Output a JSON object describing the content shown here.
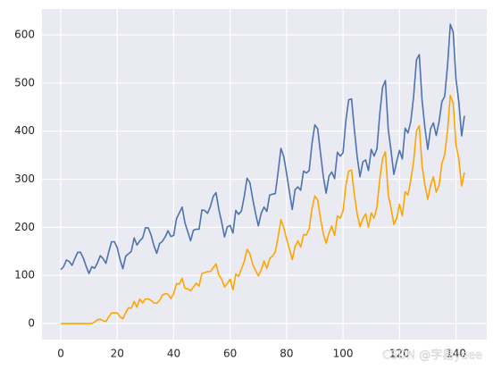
{
  "chart_data": {
    "type": "line",
    "x": [
      0,
      1,
      2,
      3,
      4,
      5,
      6,
      7,
      8,
      9,
      10,
      11,
      12,
      13,
      14,
      15,
      16,
      17,
      18,
      19,
      20,
      21,
      22,
      23,
      24,
      25,
      26,
      27,
      28,
      29,
      30,
      31,
      32,
      33,
      34,
      35,
      36,
      37,
      38,
      39,
      40,
      41,
      42,
      43,
      44,
      45,
      46,
      47,
      48,
      49,
      50,
      51,
      52,
      53,
      54,
      55,
      56,
      57,
      58,
      59,
      60,
      61,
      62,
      63,
      64,
      65,
      66,
      67,
      68,
      69,
      70,
      71,
      72,
      73,
      74,
      75,
      76,
      77,
      78,
      79,
      80,
      81,
      82,
      83,
      84,
      85,
      86,
      87,
      88,
      89,
      90,
      91,
      92,
      93,
      94,
      95,
      96,
      97,
      98,
      99,
      100,
      101,
      102,
      103,
      104,
      105,
      106,
      107,
      108,
      109,
      110,
      111,
      112,
      113,
      114,
      115,
      116,
      117,
      118,
      119,
      120,
      121,
      122,
      123,
      124,
      125,
      126,
      127,
      128,
      129,
      130,
      131,
      132,
      133,
      134,
      135,
      136,
      137,
      138,
      139,
      140,
      141,
      142,
      143
    ],
    "series": [
      {
        "color": "#4c72b0",
        "values": [
          112,
          118,
          132,
          129,
          121,
          135,
          148,
          148,
          136,
          119,
          104,
          118,
          115,
          126,
          141,
          135,
          125,
          149,
          170,
          170,
          158,
          133,
          114,
          140,
          145,
          150,
          178,
          163,
          172,
          178,
          199,
          199,
          184,
          162,
          146,
          166,
          171,
          180,
          193,
          181,
          183,
          218,
          230,
          242,
          209,
          191,
          172,
          194,
          196,
          196,
          236,
          235,
          229,
          243,
          264,
          272,
          237,
          211,
          180,
          201,
          204,
          188,
          235,
          227,
          234,
          264,
          302,
          293,
          259,
          229,
          203,
          229,
          242,
          233,
          267,
          269,
          270,
          315,
          364,
          347,
          312,
          274,
          237,
          278,
          284,
          277,
          317,
          313,
          318,
          374,
          413,
          405,
          355,
          306,
          271,
          306,
          315,
          301,
          356,
          348,
          355,
          422,
          465,
          467,
          404,
          347,
          305,
          336,
          340,
          318,
          362,
          348,
          363,
          435,
          491,
          505,
          404,
          359,
          310,
          337,
          360,
          342,
          406,
          396,
          420,
          472,
          548,
          559,
          463,
          407,
          362,
          405,
          417,
          391,
          419,
          461,
          472,
          535,
          622,
          606,
          508,
          461,
          390,
          432
        ]
      },
      {
        "color": "#ffa500",
        "values": [
          0,
          0,
          0,
          0,
          0,
          0,
          0,
          0,
          0,
          0,
          0,
          0,
          3,
          8,
          9,
          6,
          4,
          14,
          22,
          22,
          22,
          14,
          10,
          22,
          33,
          32,
          46,
          34,
          51,
          43,
          51,
          51,
          48,
          43,
          42,
          48,
          59,
          62,
          61,
          52,
          62,
          83,
          82,
          94,
          73,
          72,
          68,
          76,
          84,
          78,
          104,
          106,
          108,
          108,
          116,
          124,
          101,
          92,
          76,
          83,
          92,
          70,
          103,
          98,
          113,
          129,
          154,
          145,
          123,
          110,
          99,
          111,
          130,
          115,
          135,
          140,
          149,
          180,
          216,
          199,
          176,
          155,
          133,
          160,
          172,
          159,
          185,
          184,
          197,
          239,
          265,
          257,
          219,
          187,
          167,
          188,
          203,
          183,
          224,
          219,
          234,
          287,
          317,
          319,
          268,
          228,
          201,
          218,
          228,
          200,
          230,
          219,
          242,
          300,
          343,
          357,
          268,
          240,
          206,
          219,
          248,
          224,
          274,
          267,
          299,
          337,
          400,
          411,
          327,
          288,
          258,
          287,
          305,
          273,
          287,
          332,
          351,
          400,
          474,
          458,
          372,
          342,
          286,
          314
        ]
      }
    ],
    "xlim": [
      -6.65,
      150.9
    ],
    "xticks": [
      0,
      20,
      40,
      60,
      80,
      100,
      120,
      140
    ],
    "ylim": [
      -33.4,
      653.9
    ],
    "yticks": [
      0,
      100,
      200,
      300,
      400,
      500,
      600
    ],
    "grid": true,
    "background": "#eaeaf2",
    "watermark": "CSDN @字易yeee"
  }
}
